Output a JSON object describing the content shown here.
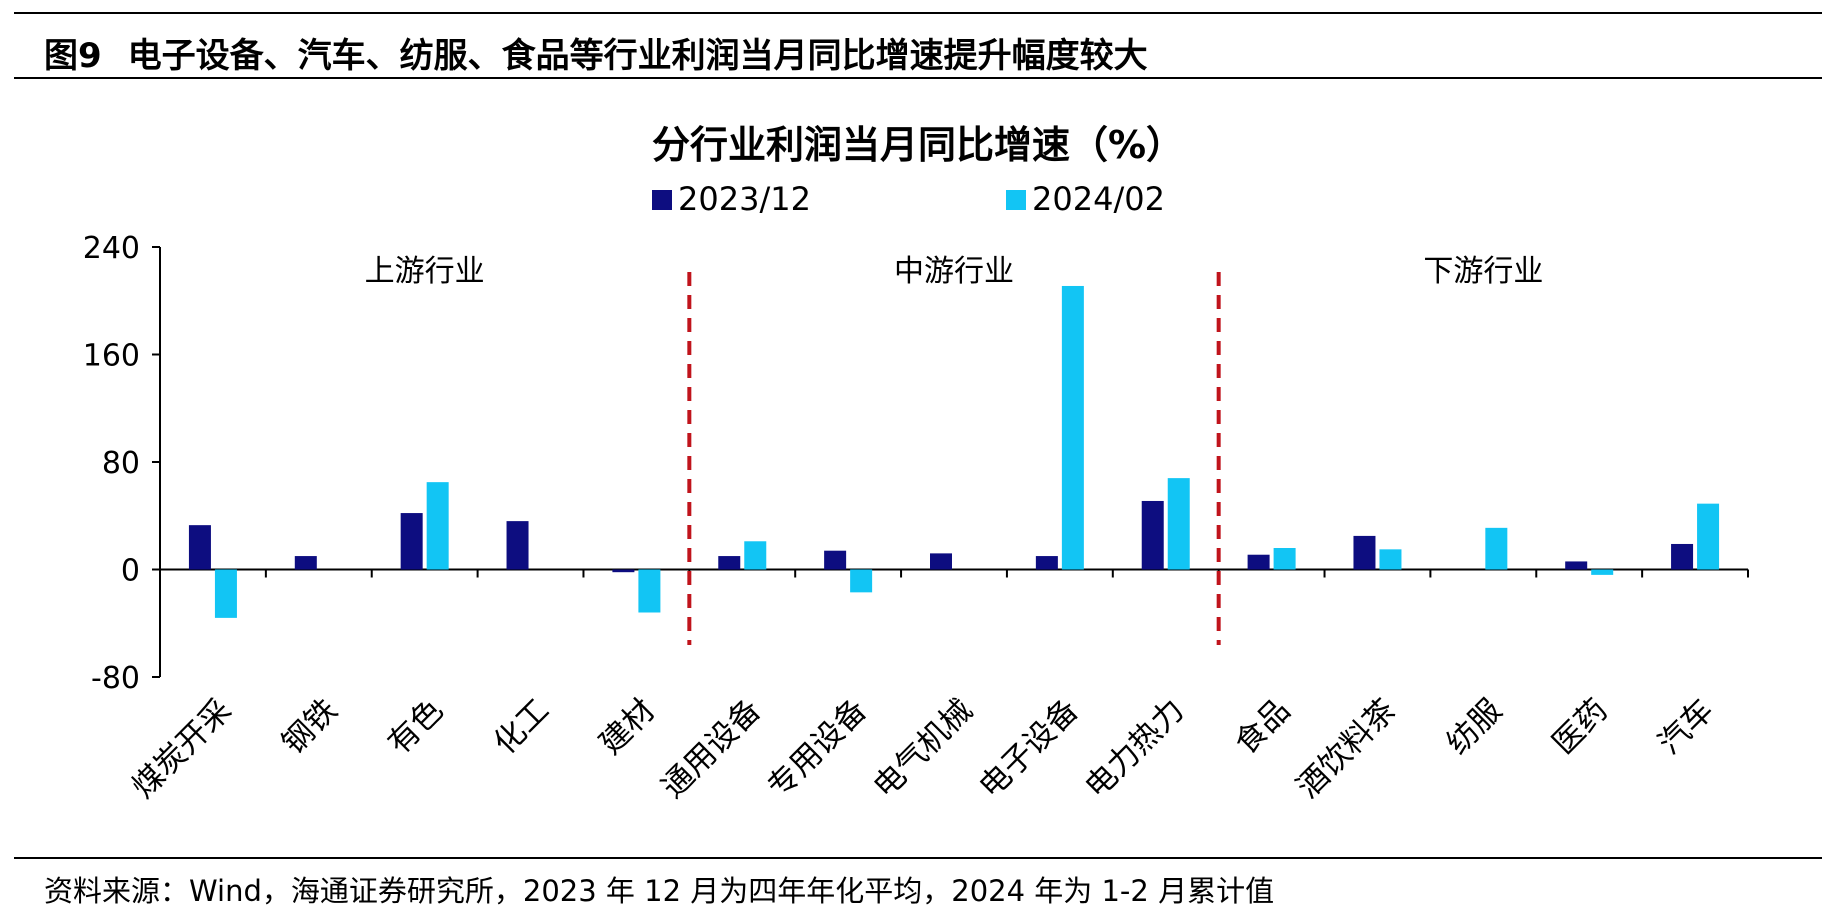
{
  "figure": {
    "number": "图9",
    "title": "电子设备、汽车、纺服、食品等行业利润当月同比增速提升幅度较大"
  },
  "chart_data": {
    "type": "bar",
    "title": "分行业利润当月同比增速（%）",
    "categories": [
      "煤炭开采",
      "钢铁",
      "有色",
      "化工",
      "建材",
      "通用设备",
      "专用设备",
      "电气机械",
      "电子设备",
      "电力热力",
      "食品",
      "酒饮料茶",
      "纺服",
      "医药",
      "汽车"
    ],
    "series": [
      {
        "name": "2023/12",
        "color": "#0d0d80",
        "values": [
          33,
          10,
          42,
          36,
          -2,
          10,
          14,
          12,
          10,
          51,
          11,
          25,
          0,
          6,
          19
        ]
      },
      {
        "name": "2024/02",
        "color": "#12c5f4",
        "values": [
          -36,
          0,
          65,
          0,
          -32,
          21,
          -17,
          0,
          211,
          68,
          16,
          15,
          31,
          -4,
          49
        ]
      }
    ],
    "ylim": [
      -80,
      240
    ],
    "yticks": [
      "-80",
      "0",
      "80",
      "160",
      "240"
    ],
    "legend": "top-center",
    "grid": false,
    "groups": [
      "上游行业",
      "中游行业",
      "下游行业"
    ],
    "group_separators_after": [
      5,
      10
    ]
  },
  "source": "资料来源：Wind，海通证券研究所，2023 年 12 月为四年年化平均，2024 年为 1-2 月累计值"
}
